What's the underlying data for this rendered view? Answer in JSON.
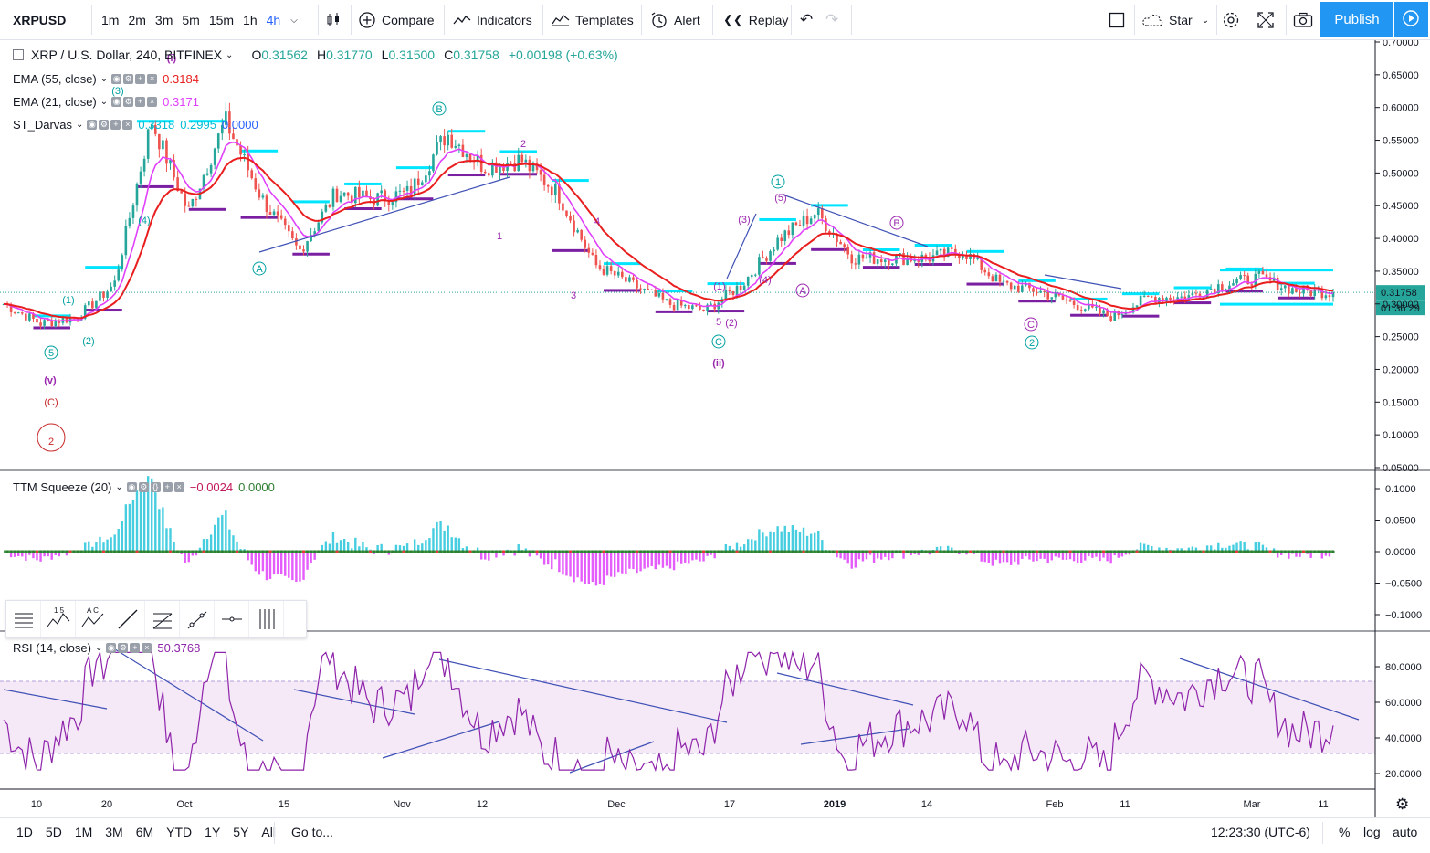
{
  "toolbar": {
    "symbol": "XRPUSD",
    "intervals": [
      "1m",
      "2m",
      "3m",
      "5m",
      "15m",
      "1h",
      "4h"
    ],
    "active_interval": "4h",
    "compare": "Compare",
    "indicators": "Indicators",
    "templates": "Templates",
    "alert": "Alert",
    "replay": "Replay",
    "star": "Star",
    "publish": "Publish"
  },
  "legend": {
    "title": "XRP / U.S. Dollar, 240, BITFINEX",
    "o_label": "O",
    "o": "0.31562",
    "h_label": "H",
    "h": "0.31770",
    "l_label": "L",
    "l": "0.31500",
    "c_label": "C",
    "c": "0.31758",
    "change": "+0.00198 (+0.63%)",
    "ema55_name": "EMA (55, close)",
    "ema55_val": "0.3184",
    "ema21_name": "EMA (21, close)",
    "ema21_val": "0.3171",
    "darvas_name": "ST_Darvas",
    "darvas_v1": "0.3318",
    "darvas_v2": "0.2995",
    "darvas_v3": "0.0000",
    "ttm_name": "TTM Squeeze (20)",
    "ttm_v1": "−0.0024",
    "ttm_v2": "0.0000",
    "rsi_name": "RSI (14, close)",
    "rsi_val": "50.3768"
  },
  "price_axis": [
    "0.70000",
    "0.65000",
    "0.60000",
    "0.55000",
    "0.50000",
    "0.45000",
    "0.40000",
    "0.35000",
    "0.30000",
    "0.25000",
    "0.20000",
    "0.15000",
    "0.10000",
    "0.05000"
  ],
  "last_price": "0.31758",
  "countdown": "01:36:29",
  "ttm_axis": [
    "0.1000",
    "0.0500",
    "0.0000",
    "−0.0500",
    "−0.1000"
  ],
  "rsi_axis": [
    "80.0000",
    "60.0000",
    "40.0000",
    "20.0000"
  ],
  "time_axis": [
    "10",
    "20",
    "Oct",
    "15",
    "Nov",
    "12",
    "Dec",
    "17",
    "2019",
    "14",
    "Feb",
    "11",
    "Mar",
    "11"
  ],
  "wave_labels": {
    "big_v": "(v)",
    "big_C": "(C)",
    "big_2": "2",
    "i": "(i)",
    "ii": "(ii)",
    "c5": "5",
    "p1": "(1)",
    "p2": "(2)",
    "p3": "(3)",
    "p4": "(4)",
    "cA1": "A",
    "cB1": "B",
    "n1": "1",
    "n2": "2",
    "n3": "3",
    "n4": "4",
    "n5": "5",
    "cC1": "C",
    "cC2": "C",
    "c1": "1",
    "c2": "2",
    "pA2": "A",
    "pB2": "B",
    "p5": "(5)",
    "p1b": "(1)",
    "p2b": "(2)"
  },
  "chart_data": {
    "type": "line",
    "price_series": {
      "name": "XRP / U.S. Dollar",
      "x": [
        "Sep 8",
        "Sep 12",
        "Sep 18",
        "Sep 20",
        "Sep 22",
        "Sep 26",
        "Oct 1",
        "Oct 8",
        "Oct 11",
        "Oct 15",
        "Oct 25",
        "Nov 5",
        "Nov 7",
        "Nov 12",
        "Nov 17",
        "Nov 21",
        "Nov 25",
        "Dec 1",
        "Dec 7",
        "Dec 14",
        "Dec 17",
        "Dec 21",
        "Dec 22",
        "Dec 27",
        "Jan 1",
        "Jan 7",
        "Jan 10",
        "Jan 14",
        "Jan 20",
        "Jan 27",
        "Jan 28",
        "Feb 4",
        "Feb 11",
        "Feb 18",
        "Feb 23",
        "Mar 1",
        "Mar 11"
      ],
      "y": [
        0.3,
        0.27,
        0.28,
        0.33,
        0.58,
        0.44,
        0.58,
        0.46,
        0.38,
        0.47,
        0.46,
        0.47,
        0.56,
        0.51,
        0.52,
        0.47,
        0.36,
        0.33,
        0.3,
        0.29,
        0.33,
        0.4,
        0.44,
        0.37,
        0.37,
        0.37,
        0.38,
        0.33,
        0.32,
        0.3,
        0.28,
        0.31,
        0.31,
        0.33,
        0.34,
        0.32,
        0.3176
      ]
    },
    "ema55": {
      "name": "EMA (55, close)",
      "last": 0.3184
    },
    "ema21": {
      "name": "EMA (21, close)",
      "last": 0.3171
    },
    "ylim": [
      0.05,
      0.7
    ],
    "ttm_squeeze_last": -0.0024,
    "rsi_last": 50.3768,
    "rsi_band": [
      30,
      70
    ],
    "colors": {
      "ema55": "#e91e1e",
      "ema21": "#e040fb",
      "candle_up": "#26a69a",
      "candle_down": "#ef5350",
      "darvas_top": "#00e5ff",
      "darvas_bottom": "#7b1fa2",
      "rsi": "#8e24aa"
    }
  },
  "bottom": {
    "ranges": [
      "1D",
      "5D",
      "1M",
      "3M",
      "6M",
      "YTD",
      "1Y",
      "5Y",
      "All"
    ],
    "goto": "Go to...",
    "clock": "12:23:30 (UTC-6)",
    "percent": "%",
    "log": "log",
    "auto": "auto"
  }
}
